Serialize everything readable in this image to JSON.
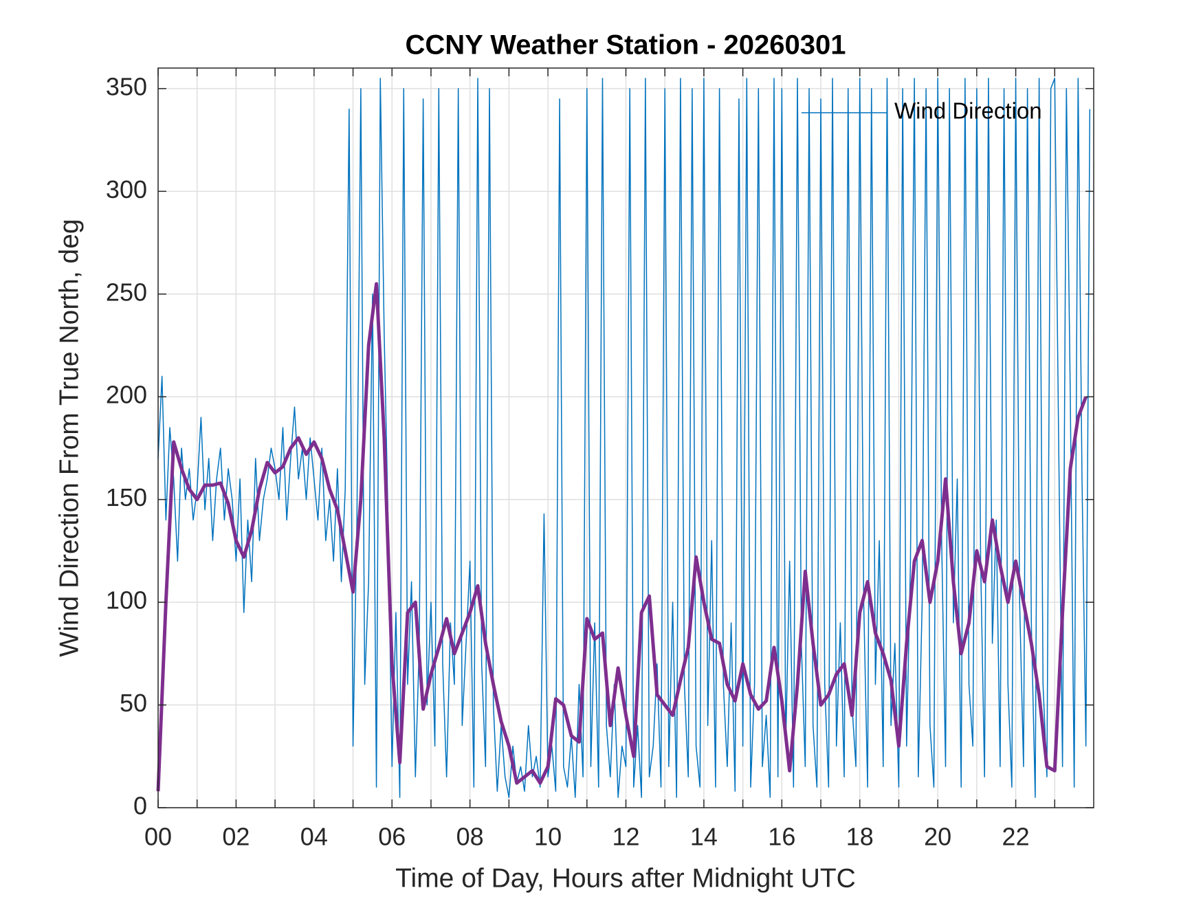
{
  "chart_data": {
    "type": "line",
    "title": "CCNY Weather Station - 20260301",
    "xlabel": "Time of Day, Hours after Midnight UTC",
    "ylabel": "Wind Direction From True North, deg",
    "xlim": [
      0,
      24
    ],
    "ylim": [
      0,
      360
    ],
    "xticks": [
      {
        "value": 0,
        "label": "00"
      },
      {
        "value": 2,
        "label": "02"
      },
      {
        "value": 4,
        "label": "04"
      },
      {
        "value": 6,
        "label": "06"
      },
      {
        "value": 8,
        "label": "08"
      },
      10,
      12,
      14,
      16,
      18,
      20,
      22
    ],
    "xminorticks": [
      1,
      3,
      5,
      7,
      9,
      11,
      13,
      15,
      17,
      19,
      21,
      23
    ],
    "yticks": [
      0,
      50,
      100,
      150,
      200,
      250,
      300,
      350
    ],
    "grid": true,
    "legend": "upper right",
    "series": [
      {
        "name": "Wind Direction",
        "color": "#0072bd",
        "width": 1.5,
        "x": [
          0,
          0.1,
          0.2,
          0.3,
          0.4,
          0.5,
          0.6,
          0.7,
          0.8,
          0.9,
          1,
          1.1,
          1.2,
          1.3,
          1.4,
          1.5,
          1.6,
          1.7,
          1.8,
          1.9,
          2,
          2.1,
          2.2,
          2.3,
          2.4,
          2.5,
          2.6,
          2.7,
          2.8,
          2.9,
          3,
          3.1,
          3.2,
          3.3,
          3.4,
          3.5,
          3.6,
          3.7,
          3.8,
          3.9,
          4,
          4.1,
          4.2,
          4.3,
          4.4,
          4.5,
          4.6,
          4.7,
          4.8,
          4.9,
          5,
          5.1,
          5.2,
          5.3,
          5.4,
          5.5,
          5.6,
          5.7,
          5.8,
          5.9,
          6,
          6.1,
          6.2,
          6.3,
          6.4,
          6.5,
          6.6,
          6.7,
          6.8,
          6.9,
          7,
          7.1,
          7.2,
          7.3,
          7.4,
          7.5,
          7.6,
          7.7,
          7.8,
          7.9,
          8,
          8.1,
          8.2,
          8.3,
          8.4,
          8.5,
          8.6,
          8.7,
          8.8,
          8.9,
          9,
          9.1,
          9.2,
          9.3,
          9.4,
          9.5,
          9.6,
          9.7,
          9.8,
          9.9,
          10,
          10.1,
          10.2,
          10.3,
          10.4,
          10.5,
          10.6,
          10.7,
          10.8,
          10.9,
          11,
          11.1,
          11.2,
          11.3,
          11.4,
          11.5,
          11.6,
          11.7,
          11.8,
          11.9,
          12,
          12.1,
          12.2,
          12.3,
          12.4,
          12.5,
          12.6,
          12.7,
          12.8,
          12.9,
          13,
          13.1,
          13.2,
          13.3,
          13.4,
          13.5,
          13.6,
          13.7,
          13.8,
          13.9,
          14,
          14.1,
          14.2,
          14.3,
          14.4,
          14.5,
          14.6,
          14.7,
          14.8,
          14.9,
          15,
          15.1,
          15.2,
          15.3,
          15.4,
          15.5,
          15.6,
          15.7,
          15.8,
          15.9,
          16,
          16.1,
          16.2,
          16.3,
          16.4,
          16.5,
          16.6,
          16.7,
          16.8,
          16.9,
          17,
          17.1,
          17.2,
          17.3,
          17.4,
          17.5,
          17.6,
          17.7,
          17.8,
          17.9,
          18,
          18.1,
          18.2,
          18.3,
          18.4,
          18.5,
          18.6,
          18.7,
          18.8,
          18.9,
          19,
          19.1,
          19.2,
          19.3,
          19.4,
          19.5,
          19.6,
          19.7,
          19.8,
          19.9,
          20,
          20.1,
          20.2,
          20.3,
          20.4,
          20.5,
          20.6,
          20.7,
          20.8,
          20.9,
          21,
          21.1,
          21.2,
          21.3,
          21.4,
          21.5,
          21.6,
          21.7,
          21.8,
          21.9,
          22,
          22.1,
          22.2,
          22.3,
          22.4,
          22.5,
          22.6,
          22.7,
          22.8,
          22.9,
          23,
          23.1,
          23.2,
          23.3,
          23.4,
          23.5,
          23.6,
          23.7,
          23.8,
          23.9
        ],
        "values": [
          170,
          210,
          140,
          185,
          160,
          120,
          175,
          150,
          165,
          140,
          155,
          190,
          145,
          170,
          130,
          160,
          175,
          140,
          165,
          150,
          120,
          160,
          95,
          140,
          110,
          170,
          130,
          150,
          160,
          175,
          165,
          150,
          185,
          140,
          170,
          195,
          160,
          175,
          150,
          180,
          160,
          140,
          175,
          130,
          150,
          120,
          165,
          110,
          155,
          340,
          30,
          140,
          350,
          60,
          110,
          250,
          10,
          355,
          230,
          140,
          20,
          95,
          5,
          350,
          60,
          110,
          15,
          80,
          345,
          50,
          100,
          30,
          350,
          70,
          15,
          90,
          60,
          350,
          40,
          80,
          120,
          10,
          355,
          70,
          20,
          350,
          50,
          8,
          40,
          15,
          5,
          30,
          12,
          20,
          8,
          40,
          15,
          25,
          10,
          143,
          15,
          30,
          8,
          345,
          20,
          10,
          35,
          5,
          60,
          15,
          350,
          20,
          90,
          10,
          355,
          40,
          15,
          60,
          5,
          30,
          20,
          350,
          10,
          40,
          5,
          355,
          15,
          30,
          70,
          10,
          350,
          20,
          100,
          5,
          355,
          60,
          15,
          350,
          30,
          10,
          355,
          40,
          130,
          10,
          350,
          60,
          20,
          90,
          8,
          345,
          30,
          355,
          10,
          60,
          350,
          20,
          45,
          5,
          355,
          15,
          350,
          30,
          120,
          10,
          355,
          80,
          20,
          350,
          40,
          10,
          345,
          60,
          10,
          355,
          30,
          90,
          15,
          350,
          50,
          20,
          355,
          100,
          10,
          350,
          60,
          130,
          20,
          355,
          40,
          80,
          10,
          350,
          30,
          120,
          355,
          15,
          100,
          350,
          40,
          10,
          355,
          130,
          20,
          350,
          90,
          160,
          10,
          355,
          60,
          30,
          350,
          120,
          15,
          355,
          80,
          140,
          20,
          350,
          60,
          10,
          355,
          100,
          20,
          350,
          90,
          5,
          355,
          60,
          15,
          350,
          355,
          180,
          20,
          350,
          200,
          10,
          355,
          160,
          30,
          340
        ]
      },
      {
        "color": "#7e2f8e",
        "width": 5,
        "x": [
          0,
          0.2,
          0.4,
          0.6,
          0.8,
          1,
          1.2,
          1.4,
          1.6,
          1.8,
          2,
          2.2,
          2.4,
          2.6,
          2.8,
          3,
          3.2,
          3.4,
          3.6,
          3.8,
          4,
          4.2,
          4.4,
          4.6,
          4.8,
          5,
          5.2,
          5.4,
          5.6,
          5.8,
          6,
          6.2,
          6.4,
          6.6,
          6.8,
          7,
          7.2,
          7.4,
          7.6,
          7.8,
          8,
          8.2,
          8.4,
          8.6,
          8.8,
          9,
          9.2,
          9.4,
          9.6,
          9.8,
          10,
          10.2,
          10.4,
          10.6,
          10.8,
          11,
          11.2,
          11.4,
          11.6,
          11.8,
          12,
          12.2,
          12.4,
          12.6,
          12.8,
          13,
          13.2,
          13.4,
          13.6,
          13.8,
          14,
          14.2,
          14.4,
          14.6,
          14.8,
          15,
          15.2,
          15.4,
          15.6,
          15.8,
          16,
          16.2,
          16.4,
          16.6,
          16.8,
          17,
          17.2,
          17.4,
          17.6,
          17.8,
          18,
          18.2,
          18.4,
          18.6,
          18.8,
          19,
          19.2,
          19.4,
          19.6,
          19.8,
          20,
          20.2,
          20.4,
          20.6,
          20.8,
          21,
          21.2,
          21.4,
          21.6,
          21.8,
          22,
          22.2,
          22.4,
          22.6,
          22.8,
          23,
          23.2,
          23.4,
          23.6,
          23.8
        ],
        "values": [
          8,
          100,
          178,
          165,
          155,
          150,
          157,
          157,
          158,
          148,
          130,
          122,
          135,
          155,
          168,
          163,
          166,
          175,
          180,
          172,
          178,
          170,
          155,
          145,
          125,
          105,
          150,
          225,
          255,
          180,
          70,
          22,
          95,
          100,
          48,
          65,
          78,
          92,
          75,
          85,
          95,
          108,
          80,
          60,
          42,
          30,
          12,
          15,
          18,
          12,
          20,
          53,
          50,
          35,
          32,
          92,
          82,
          85,
          40,
          68,
          45,
          25,
          95,
          103,
          55,
          50,
          45,
          62,
          78,
          122,
          100,
          82,
          80,
          60,
          52,
          70,
          55,
          48,
          52,
          78,
          52,
          18,
          60,
          115,
          80,
          50,
          55,
          65,
          70,
          45,
          95,
          110,
          85,
          75,
          62,
          30,
          80,
          120,
          130,
          100,
          120,
          160,
          110,
          75,
          90,
          125,
          110,
          140,
          118,
          100,
          120,
          100,
          80,
          55,
          20,
          18,
          95,
          165,
          190,
          200
        ]
      }
    ]
  }
}
